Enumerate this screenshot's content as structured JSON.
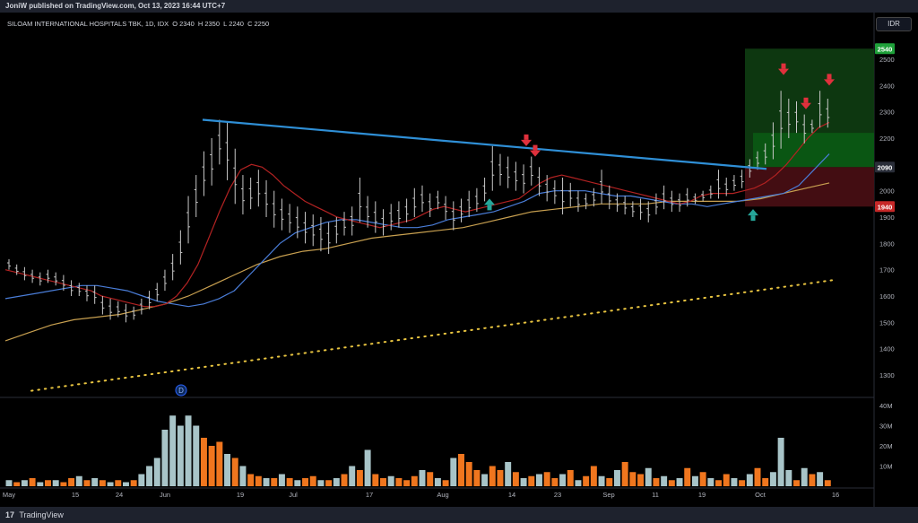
{
  "header": {
    "publish_note": "JoniW published on TradingView.com, Oct 13, 2023 16:44 UTC+7"
  },
  "legend": {
    "symbol": "SILOAM INTERNATIONAL HOSPITALS TBK, 1D, IDX",
    "o_label": "O",
    "o_value": "2340",
    "h_label": "H",
    "h_value": "2350",
    "l_label": "L",
    "l_value": "2240",
    "c_label": "C",
    "c_value": "2250"
  },
  "currency": "IDR",
  "footer": {
    "brand": "TradingView",
    "logo": "17"
  },
  "colors": {
    "background": "#000000",
    "bar_up": "#c8c8c8",
    "ema_fast": "#b22222",
    "ema_mid": "#4a7dd8",
    "ema_slow": "#c8a050",
    "trendline": "#2f8fd6",
    "dotted_support": "#e8c440",
    "vol_up": "#a8c4c8",
    "vol_down": "#f0761e",
    "arrow_down": "#e0303c",
    "arrow_up": "#26a69a",
    "target_zone": "#1b5e20",
    "stop_zone": "#5d1218"
  },
  "chart_data": {
    "type": "ohlc-bar",
    "price_axis": {
      "ticks": [
        "1300",
        "1400",
        "1500",
        "1600",
        "1700",
        "1800",
        "1900",
        "2000",
        "2100",
        "2200",
        "2300",
        "2400",
        "2500"
      ],
      "badges": [
        {
          "label": "2540",
          "value": 2540,
          "color": "#1fa13a"
        },
        {
          "label": "2090",
          "value": 2090,
          "color": "#2a2e39"
        },
        {
          "label": "1940",
          "value": 1940,
          "color": "#c62828"
        }
      ],
      "ylim": [
        1240,
        2580
      ]
    },
    "volume_axis": {
      "ticks": [
        "10M",
        "20M",
        "30M",
        "40M"
      ],
      "ylim": [
        0,
        40
      ]
    },
    "time_axis": {
      "ticks": [
        "May",
        "15",
        "24",
        "Jun",
        "19",
        "Jul",
        "17",
        "Aug",
        "14",
        "23",
        "Sep",
        "11",
        "19",
        "Oct",
        "16"
      ]
    },
    "ohlc": [
      [
        1740,
        1700
      ],
      [
        1720,
        1680
      ],
      [
        1710,
        1660
      ],
      [
        1700,
        1650
      ],
      [
        1690,
        1640
      ],
      [
        1700,
        1650
      ],
      [
        1690,
        1640
      ],
      [
        1680,
        1620
      ],
      [
        1660,
        1600
      ],
      [
        1650,
        1600
      ],
      [
        1640,
        1580
      ],
      [
        1640,
        1570
      ],
      [
        1600,
        1530
      ],
      [
        1590,
        1510
      ],
      [
        1580,
        1520
      ],
      [
        1570,
        1500
      ],
      [
        1560,
        1510
      ],
      [
        1590,
        1530
      ],
      [
        1620,
        1550
      ],
      [
        1650,
        1580
      ],
      [
        1700,
        1620
      ],
      [
        1760,
        1660
      ],
      [
        1850,
        1720
      ],
      [
        1980,
        1800
      ],
      [
        2060,
        1900
      ],
      [
        2150,
        1980
      ],
      [
        2200,
        2020
      ],
      [
        2270,
        2100
      ],
      [
        2260,
        2040
      ],
      [
        2160,
        1950
      ],
      [
        2060,
        1910
      ],
      [
        2050,
        1930
      ],
      [
        2080,
        1940
      ],
      [
        2040,
        1900
      ],
      [
        2000,
        1860
      ],
      [
        1970,
        1850
      ],
      [
        1950,
        1840
      ],
      [
        1940,
        1820
      ],
      [
        1920,
        1800
      ],
      [
        1910,
        1790
      ],
      [
        1900,
        1770
      ],
      [
        1880,
        1760
      ],
      [
        1900,
        1800
      ],
      [
        1920,
        1830
      ],
      [
        1940,
        1830
      ],
      [
        2050,
        1880
      ],
      [
        1980,
        1860
      ],
      [
        1960,
        1840
      ],
      [
        1930,
        1830
      ],
      [
        1950,
        1850
      ],
      [
        1960,
        1860
      ],
      [
        1970,
        1880
      ],
      [
        2010,
        1900
      ],
      [
        2020,
        1920
      ],
      [
        1990,
        1900
      ],
      [
        2000,
        1930
      ],
      [
        1980,
        1890
      ],
      [
        1960,
        1850
      ],
      [
        1970,
        1880
      ],
      [
        2000,
        1900
      ],
      [
        2010,
        1920
      ],
      [
        2050,
        1960
      ],
      [
        2170,
        2000
      ],
      [
        2140,
        2020
      ],
      [
        2130,
        2010
      ],
      [
        2110,
        2000
      ],
      [
        2100,
        1990
      ],
      [
        2130,
        2020
      ],
      [
        2090,
        1980
      ],
      [
        2060,
        1960
      ],
      [
        2040,
        1950
      ],
      [
        2050,
        1910
      ],
      [
        2030,
        1940
      ],
      [
        2000,
        1920
      ],
      [
        1990,
        1930
      ],
      [
        2010,
        1940
      ],
      [
        2080,
        1950
      ],
      [
        2020,
        1930
      ],
      [
        1990,
        1920
      ],
      [
        1980,
        1910
      ],
      [
        1960,
        1900
      ],
      [
        1970,
        1890
      ],
      [
        1960,
        1880
      ],
      [
        1990,
        1910
      ],
      [
        2020,
        1930
      ],
      [
        2000,
        1920
      ],
      [
        1990,
        1920
      ],
      [
        2010,
        1940
      ],
      [
        1990,
        1950
      ],
      [
        2000,
        1960
      ],
      [
        2020,
        1970
      ],
      [
        2080,
        1970
      ],
      [
        2050,
        1980
      ],
      [
        2060,
        2000
      ],
      [
        2080,
        2010
      ],
      [
        2120,
        2050
      ],
      [
        2150,
        2080
      ],
      [
        2180,
        2100
      ],
      [
        2260,
        2120
      ],
      [
        2380,
        2160
      ],
      [
        2350,
        2200
      ],
      [
        2340,
        2220
      ],
      [
        2290,
        2180
      ],
      [
        2270,
        2220
      ],
      [
        2380,
        2240
      ],
      [
        2350,
        2240
      ]
    ],
    "volume_M": [
      3,
      2,
      3,
      4,
      2,
      3,
      3,
      2,
      4,
      5,
      3,
      4,
      3,
      2,
      3,
      2,
      3,
      6,
      10,
      14,
      28,
      35,
      30,
      35,
      30,
      24,
      20,
      22,
      16,
      14,
      10,
      6,
      5,
      4,
      4,
      6,
      4,
      3,
      4,
      5,
      3,
      3,
      4,
      6,
      10,
      8,
      18,
      6,
      4,
      5,
      4,
      3,
      5,
      8,
      7,
      4,
      3,
      14,
      16,
      12,
      8,
      6,
      10,
      8,
      12,
      7,
      4,
      5,
      6,
      7,
      4,
      6,
      8,
      3,
      5,
      10,
      5,
      4,
      8,
      12,
      7,
      6,
      9,
      4,
      5,
      3,
      4,
      9,
      5,
      7,
      4,
      3,
      6,
      4,
      3,
      6,
      9,
      4,
      7,
      24,
      8,
      3,
      9,
      6,
      7,
      3
    ],
    "vol_up_flags": [
      1,
      0,
      1,
      0,
      1,
      0,
      1,
      0,
      0,
      1,
      0,
      1,
      0,
      1,
      0,
      1,
      0,
      1,
      1,
      1,
      1,
      1,
      1,
      1,
      1,
      0,
      0,
      0,
      1,
      0,
      1,
      0,
      0,
      1,
      0,
      1,
      0,
      1,
      0,
      0,
      1,
      0,
      1,
      0,
      1,
      0,
      1,
      0,
      0,
      1,
      0,
      0,
      0,
      1,
      0,
      1,
      0,
      1,
      0,
      0,
      0,
      1,
      0,
      0,
      1,
      0,
      1,
      0,
      1,
      0,
      0,
      1,
      0,
      1,
      0,
      0,
      1,
      0,
      1,
      0,
      0,
      0,
      1,
      0,
      1,
      0,
      1,
      0,
      1,
      0,
      1,
      0,
      0,
      1,
      0,
      1,
      0,
      0,
      1,
      1,
      1,
      0,
      1,
      0,
      1,
      0
    ],
    "ema_fast": [
      1700,
      1690,
      1680,
      1670,
      1660,
      1650,
      1640,
      1630,
      1620,
      1600,
      1590,
      1580,
      1570,
      1560,
      1560,
      1570,
      1600,
      1650,
      1720,
      1820,
      1920,
      2010,
      2080,
      2100,
      2090,
      2060,
      2020,
      1990,
      1960,
      1940,
      1920,
      1900,
      1890,
      1880,
      1870,
      1860,
      1870,
      1880,
      1890,
      1910,
      1930,
      1940,
      1930,
      1920,
      1930,
      1940,
      1950,
      1960,
      1970,
      2000,
      2030,
      2050,
      2060,
      2050,
      2040,
      2030,
      2020,
      2010,
      2000,
      1990,
      1980,
      1970,
      1960,
      1950,
      1960,
      1980,
      1990,
      1990,
      1990,
      2000,
      2010,
      2030,
      2060,
      2100,
      2150,
      2200,
      2240,
      2260
    ],
    "ema_mid": [
      1590,
      1600,
      1610,
      1620,
      1630,
      1640,
      1640,
      1630,
      1620,
      1600,
      1580,
      1570,
      1560,
      1570,
      1590,
      1620,
      1680,
      1740,
      1800,
      1840,
      1860,
      1880,
      1890,
      1890,
      1880,
      1870,
      1860,
      1860,
      1870,
      1890,
      1900,
      1910,
      1920,
      1940,
      1960,
      1990,
      2000,
      2000,
      2000,
      1990,
      1980,
      1980,
      1970,
      1960,
      1950,
      1950,
      1940,
      1950,
      1960,
      1970,
      1980,
      1990,
      2020,
      2080,
      2140
    ],
    "ema_slow": [
      1430,
      1460,
      1490,
      1510,
      1520,
      1530,
      1550,
      1570,
      1600,
      1640,
      1680,
      1720,
      1750,
      1770,
      1780,
      1800,
      1820,
      1830,
      1840,
      1850,
      1860,
      1880,
      1900,
      1920,
      1930,
      1940,
      1950,
      1950,
      1950,
      1960,
      1960,
      1960,
      1960,
      1970,
      1990,
      2010,
      2030
    ],
    "trendline": {
      "from": {
        "date": "Jun 06",
        "value": 2270
      },
      "to": {
        "date": "Oct 04",
        "value": 2090
      }
    },
    "dotted_support": {
      "from": {
        "date": "May 26",
        "value": 1240
      },
      "to": {
        "date": "Oct 16",
        "value": 1660
      }
    },
    "zones": [
      {
        "name": "target",
        "from": 2090,
        "to": 2540
      },
      {
        "name": "stop",
        "from": 1940,
        "to": 2090
      }
    ],
    "signals": [
      {
        "type": "down",
        "value": 2180
      },
      {
        "type": "down",
        "value": 2140
      },
      {
        "type": "up",
        "value": 1960
      },
      {
        "type": "up",
        "value": 1920
      },
      {
        "type": "down",
        "value": 2450
      },
      {
        "type": "down",
        "value": 2320
      },
      {
        "type": "down",
        "value": 2410
      }
    ],
    "dividend_marker": "D"
  }
}
